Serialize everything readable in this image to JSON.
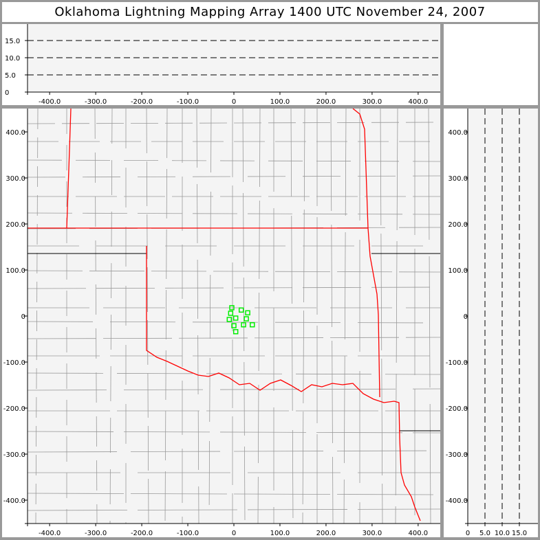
{
  "title": "Oklahoma Lightning Mapping Array   1400 UTC  November 24, 2007",
  "chart_data": [
    {
      "type": "scatter",
      "panel": "altitude-vs-east-west",
      "xlim": [
        -448,
        448
      ],
      "ylim": [
        0,
        20
      ],
      "xticks": [
        "-400.0",
        "-300.0",
        "-200.0",
        "-100.0",
        "0",
        "100.0",
        "200.0",
        "300.0",
        "400.0"
      ],
      "yticks": [
        "0",
        "5.0",
        "10.0",
        "15.0"
      ],
      "grid": "dashed horizontal at 5, 10, 15",
      "points": []
    },
    {
      "type": "scatter",
      "panel": "plan-view",
      "xlim": [
        -448,
        448
      ],
      "ylim": [
        -451,
        451
      ],
      "xticks": [
        "-400.0",
        "-300.0",
        "-200.0",
        "-100.0",
        "0",
        "100.0",
        "200.0",
        "300.0",
        "400.0"
      ],
      "yticks": [
        "-400.0",
        "-300.0",
        "-200.0",
        "-100.0",
        "0",
        "100.0",
        "200.0",
        "300.0",
        "400.0"
      ],
      "marker": "hollow square",
      "marker_color": "#00ee00",
      "state_border_color": "#ff0000",
      "county_border_color": "#999999",
      "points": [
        [
          -4.5,
          18
        ],
        [
          16,
          13
        ],
        [
          30,
          7
        ],
        [
          -7,
          6
        ],
        [
          4,
          -4.5
        ],
        [
          -10,
          -7.5
        ],
        [
          27,
          -6
        ],
        [
          0,
          -21
        ],
        [
          21,
          -19
        ],
        [
          40,
          -19
        ],
        [
          4,
          -34
        ]
      ]
    },
    {
      "type": "scatter",
      "panel": "north-south-vs-altitude",
      "xlim": [
        0,
        20.4
      ],
      "ylim": [
        -451,
        451
      ],
      "xticks": [
        "0",
        "5.0",
        "10.0",
        "15.0"
      ],
      "yticks": [
        "-400.0",
        "-300.0",
        "-200.0",
        "-100.0",
        "0",
        "100.0",
        "200.0",
        "300.0",
        "400.0"
      ],
      "grid": "dashed vertical at 5, 10, 15",
      "points": []
    }
  ]
}
